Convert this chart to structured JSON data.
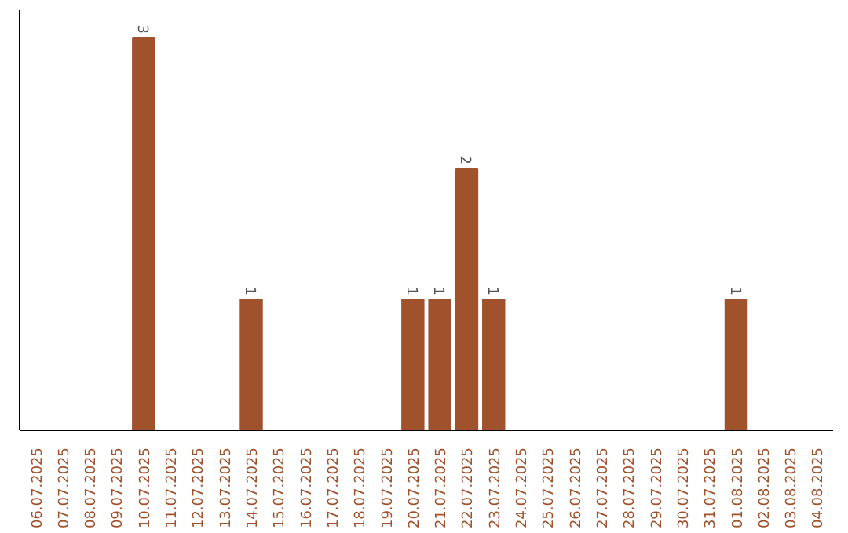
{
  "chart_data": {
    "type": "bar",
    "categories": [
      "06.07.2025",
      "07.07.2025",
      "08.07.2025",
      "09.07.2025",
      "10.07.2025",
      "11.07.2025",
      "12.07.2025",
      "13.07.2025",
      "14.07.2025",
      "15.07.2025",
      "16.07.2025",
      "17.07.2025",
      "18.07.2025",
      "19.07.2025",
      "20.07.2025",
      "21.07.2025",
      "22.07.2025",
      "23.07.2025",
      "24.07.2025",
      "25.07.2025",
      "26.07.2025",
      "27.07.2025",
      "28.07.2025",
      "29.07.2025",
      "30.07.2025",
      "31.07.2025",
      "01.08.2025",
      "02.08.2025",
      "03.08.2025",
      "04.08.2025"
    ],
    "values": [
      0,
      0,
      0,
      0,
      3,
      0,
      0,
      0,
      1,
      0,
      0,
      0,
      0,
      0,
      1,
      1,
      2,
      1,
      0,
      0,
      0,
      0,
      0,
      0,
      0,
      0,
      1,
      0,
      0,
      0
    ],
    "value_labels": [
      null,
      null,
      null,
      null,
      "3",
      null,
      null,
      null,
      "1",
      null,
      null,
      null,
      null,
      null,
      "1",
      "1",
      "2",
      "1",
      null,
      null,
      null,
      null,
      null,
      null,
      null,
      null,
      "1",
      null,
      null,
      null
    ],
    "color": "#a0522d",
    "grid": false
  }
}
